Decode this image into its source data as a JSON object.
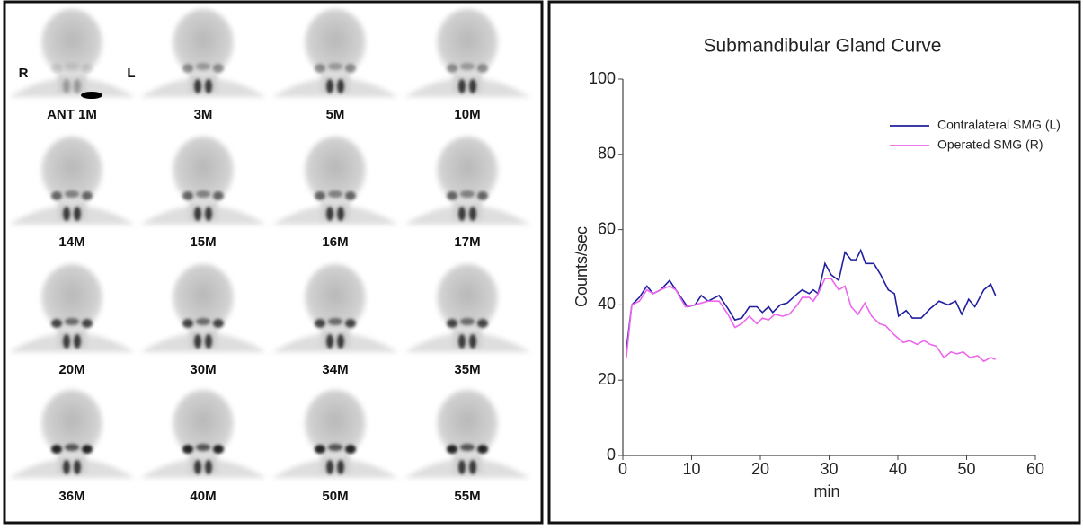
{
  "scan_panel": {
    "side_labels": [
      "R",
      "L"
    ],
    "labels": [
      "ANT 1M",
      "3M",
      "5M",
      "10M",
      "14M",
      "15M",
      "16M",
      "17M",
      "20M",
      "30M",
      "34M",
      "35M",
      "36M",
      "40M",
      "50M",
      "55M"
    ]
  },
  "chart_data": {
    "type": "line",
    "title": "Submandibular Gland Curve",
    "x_label": "min",
    "y_label": "Counts/sec",
    "xlim": [
      0,
      60
    ],
    "xticks": [
      0,
      10,
      20,
      30,
      40,
      50,
      60
    ],
    "ylim": [
      0,
      100
    ],
    "yticks": [
      0,
      20,
      40,
      60,
      80,
      100
    ],
    "legend": "upper right",
    "series": [
      {
        "name": "Contralateral SMG (L)",
        "color": "#1f1fa0",
        "x": [
          0.5,
          1.3,
          2.4,
          3.5,
          4.4,
          5.5,
          6.8,
          7.7,
          9.4,
          10.5,
          11.4,
          12.4,
          14.0,
          15.3,
          16.3,
          17.3,
          18.4,
          19.5,
          20.3,
          21.2,
          21.8,
          22.9,
          23.9,
          25.4,
          26.1,
          27.1,
          27.7,
          28.4,
          29.4,
          30.3,
          31.4,
          32.3,
          33.2,
          33.9,
          34.6,
          35.3,
          36.5,
          37.5,
          38.6,
          39.5,
          40.1,
          41.2,
          42.1,
          43.4,
          44.7,
          46.0,
          47.3,
          48.4,
          49.3,
          50.3,
          51.2,
          52.5,
          53.5,
          54.2
        ],
        "values": [
          28,
          40,
          42,
          45,
          43,
          44,
          46.5,
          44,
          39.5,
          40,
          42.5,
          41,
          42.5,
          39,
          36,
          36.5,
          39.5,
          39.5,
          38,
          39.5,
          38,
          40,
          40.5,
          43,
          44,
          43,
          44,
          43,
          51,
          48,
          46.5,
          54,
          52,
          52,
          54.5,
          51,
          51,
          48,
          44,
          43,
          37,
          38.5,
          36.5,
          36.5,
          39,
          41,
          40,
          41,
          37.5,
          41.5,
          39.5,
          44,
          45.5,
          42.5
        ]
      },
      {
        "name": "Operated SMG (R)",
        "color": "#ee66ee",
        "x": [
          0.5,
          1.3,
          2.4,
          3.5,
          4.4,
          5.5,
          6.8,
          7.7,
          9.1,
          10.5,
          11.4,
          12.4,
          14.0,
          15.3,
          16.3,
          17.3,
          18.4,
          19.5,
          20.3,
          21.2,
          22.1,
          23.2,
          24.2,
          25.4,
          26.1,
          27.1,
          27.7,
          28.4,
          29.4,
          30.3,
          31.4,
          32.3,
          33.2,
          34.2,
          35.2,
          36.2,
          37.3,
          38.2,
          39.5,
          40.8,
          41.7,
          42.8,
          43.8,
          44.7,
          45.6,
          46.7,
          47.7,
          48.6,
          49.5,
          50.5,
          51.6,
          52.5,
          53.5,
          54.2
        ],
        "values": [
          26,
          40,
          41,
          44,
          43,
          44,
          45,
          44,
          39.5,
          40,
          40.5,
          41,
          41,
          37.5,
          34,
          35,
          37,
          35,
          36.5,
          36,
          37.5,
          37,
          37.5,
          40,
          42,
          42,
          41,
          43,
          47,
          47,
          44,
          45,
          39.5,
          37.5,
          40.5,
          37,
          35,
          34.5,
          32,
          30,
          30.5,
          29.5,
          30.5,
          29.5,
          29,
          26,
          27.5,
          27,
          27.5,
          26,
          26.5,
          25,
          26,
          25.5
        ]
      }
    ]
  }
}
